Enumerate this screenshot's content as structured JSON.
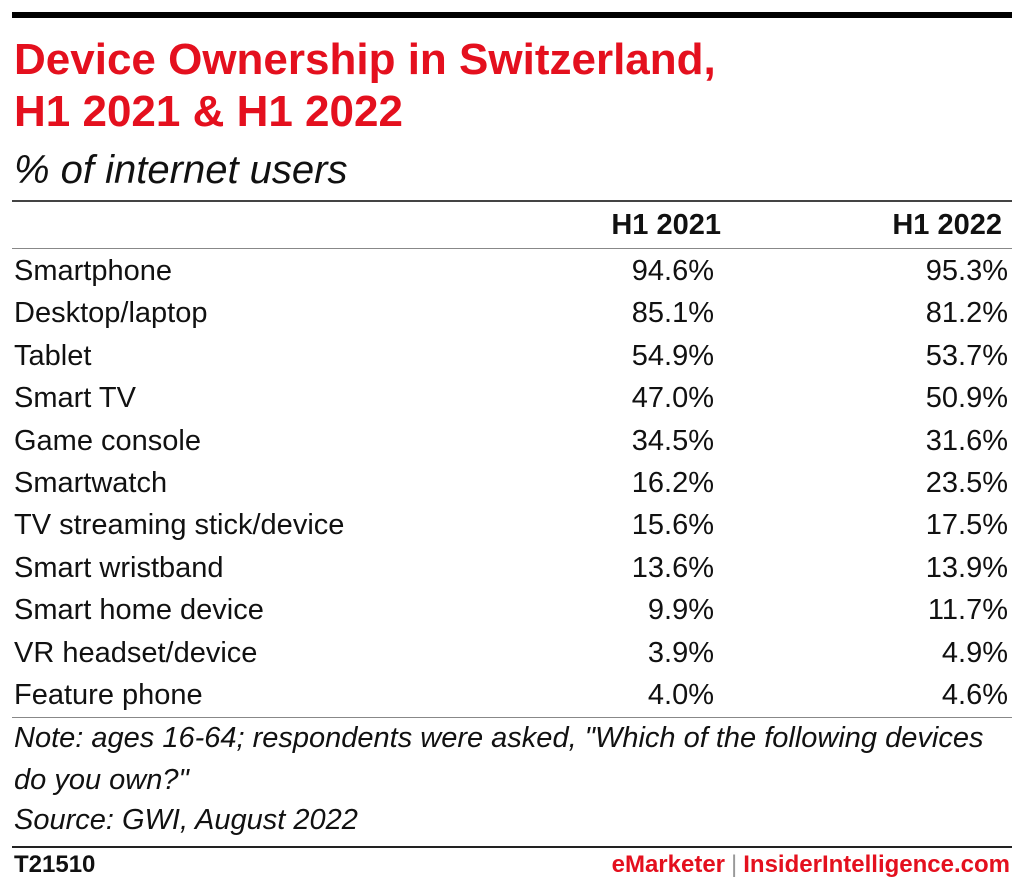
{
  "chart_data": {
    "type": "table",
    "title_line1": "Device Ownership in Switzerland,",
    "title_line2": "H1 2021 & H1 2022",
    "subtitle": "% of internet users",
    "columns": [
      "H1 2021",
      "H1 2022"
    ],
    "rows": [
      {
        "label": "Smartphone",
        "h1_2021": "94.6%",
        "h1_2022": "95.3%"
      },
      {
        "label": "Desktop/laptop",
        "h1_2021": "85.1%",
        "h1_2022": "81.2%"
      },
      {
        "label": "Tablet",
        "h1_2021": "54.9%",
        "h1_2022": "53.7%"
      },
      {
        "label": "Smart TV",
        "h1_2021": "47.0%",
        "h1_2022": "50.9%"
      },
      {
        "label": "Game console",
        "h1_2021": "34.5%",
        "h1_2022": "31.6%"
      },
      {
        "label": "Smartwatch",
        "h1_2021": "16.2%",
        "h1_2022": "23.5%"
      },
      {
        "label": "TV streaming stick/device",
        "h1_2021": "15.6%",
        "h1_2022": "17.5%"
      },
      {
        "label": "Smart wristband",
        "h1_2021": "13.6%",
        "h1_2022": "13.9%"
      },
      {
        "label": "Smart home device",
        "h1_2021": "9.9%",
        "h1_2022": "11.7%"
      },
      {
        "label": "VR headset/device",
        "h1_2021": "3.9%",
        "h1_2022": "4.9%"
      },
      {
        "label": "Feature phone",
        "h1_2021": "4.0%",
        "h1_2022": "4.6%"
      }
    ],
    "note": "Note: ages 16-64; respondents were asked, \"Which of the following devices do you own?\"",
    "source": "Source: GWI, August 2022"
  },
  "footer": {
    "id": "T21510",
    "brand_a": "eMarketer",
    "separator": "|",
    "brand_b": "InsiderIntelligence.com"
  },
  "colors": {
    "accent": "#e4101e",
    "text": "#111111"
  }
}
